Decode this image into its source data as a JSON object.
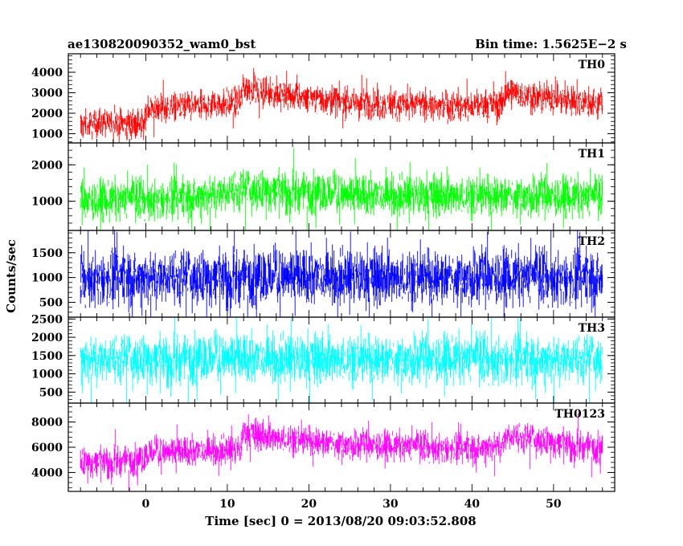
{
  "chart_data": {
    "type": "line",
    "title_left": "ae130820090352_wam0_bst",
    "title_right": "Bin time: 1.5625E−2 s",
    "xlabel": "Time [sec] 0 = 2013/08/20 09:03:52.808",
    "ylabel": "Counts/sec",
    "xlim": [
      -9.5,
      57.5
    ],
    "x_ticks": [
      0,
      10,
      20,
      30,
      40,
      50
    ],
    "x_tick_labels": [
      "0",
      "10",
      "20",
      "30",
      "40",
      "50"
    ],
    "data_x_range": [
      -8.0,
      56.0
    ],
    "grid": false,
    "panels": [
      {
        "name": "TH0",
        "color": "#ff0000",
        "ylim": [
          550,
          4900
        ],
        "y_ticks": [
          1000,
          2000,
          3000,
          4000
        ],
        "y_tick_labels": [
          "1000",
          "2000",
          "3000",
          "4000"
        ],
        "profile": [
          [
            -8,
            1500
          ],
          [
            -0.1,
            1500
          ],
          [
            0,
            2200
          ],
          [
            11.6,
            2500
          ],
          [
            12.0,
            3300
          ],
          [
            15,
            3000
          ],
          [
            25,
            2500
          ],
          [
            40,
            2300
          ],
          [
            43.8,
            2500
          ],
          [
            44.2,
            3000
          ],
          [
            50,
            2700
          ],
          [
            56,
            2400
          ]
        ],
        "noise": 650
      },
      {
        "name": "TH1",
        "color": "#00ff00",
        "ylim": [
          200,
          2600
        ],
        "y_ticks": [
          1000,
          2000
        ],
        "y_tick_labels": [
          "1000",
          "2000"
        ],
        "profile": [
          [
            -8,
            1000
          ],
          [
            5,
            1100
          ],
          [
            12,
            1300
          ],
          [
            16,
            1300
          ],
          [
            25,
            1150
          ],
          [
            45,
            1150
          ],
          [
            56,
            1100
          ]
        ],
        "noise": 520
      },
      {
        "name": "TH2",
        "color": "#0000ff",
        "ylim": [
          200,
          1950
        ],
        "y_ticks": [
          500,
          1000,
          1500
        ],
        "y_tick_labels": [
          "500",
          "1000",
          "1500"
        ],
        "profile": [
          [
            -8,
            1000
          ],
          [
            56,
            1000
          ]
        ],
        "noise": 520
      },
      {
        "name": "TH3",
        "color": "#00ffff",
        "ylim": [
          200,
          2550
        ],
        "y_ticks": [
          500,
          1000,
          1500,
          2000,
          2500
        ],
        "y_tick_labels": [
          "500",
          "1000",
          "1500",
          "2000",
          "2500"
        ],
        "profile": [
          [
            -8,
            1400
          ],
          [
            56,
            1400
          ]
        ],
        "noise": 620
      },
      {
        "name": "TH0123",
        "color": "#ff00ff",
        "ylim": [
          2500,
          9500
        ],
        "y_ticks": [
          4000,
          6000,
          8000
        ],
        "y_tick_labels": [
          "4000",
          "6000",
          "8000"
        ],
        "profile": [
          [
            -8,
            4800
          ],
          [
            -0.1,
            5000
          ],
          [
            0,
            5500
          ],
          [
            11.6,
            5800
          ],
          [
            12.0,
            7200
          ],
          [
            15,
            6800
          ],
          [
            25,
            6200
          ],
          [
            40,
            5900
          ],
          [
            43.8,
            6200
          ],
          [
            44.2,
            6900
          ],
          [
            50,
            6400
          ],
          [
            56,
            5900
          ]
        ],
        "noise": 1100
      }
    ]
  }
}
